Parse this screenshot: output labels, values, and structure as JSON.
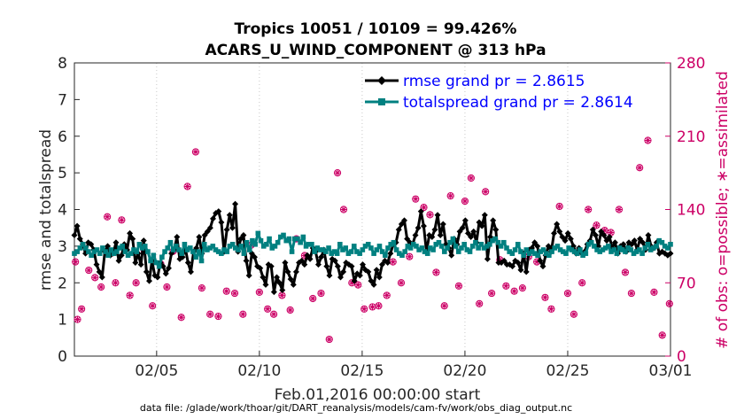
{
  "title_line1": "Tropics 10051 / 10109 = 99.426%",
  "title_line2": "ACARS_U_WIND_COMPONENT @ 313 hPa",
  "footer": "data file: /glade/work/thoar/git/DART_reanalysis/models/cam-fv/work/obs_diag_output.nc",
  "chart_data": {
    "type": "line",
    "title": "Tropics 10051 / 10109 = 99.426% — ACARS_U_WIND_COMPONENT @ 313 hPa",
    "xlabel": "Feb.01,2016 00:00:00 start",
    "ylabel": "rmse and totalspread",
    "y2label": "# of obs: o=possible; ∗=assimilated",
    "xlim": [
      0,
      29
    ],
    "ylim": [
      0,
      8
    ],
    "y2lim": [
      0,
      280
    ],
    "x_ticks": [
      {
        "x": 4,
        "label": "02/05"
      },
      {
        "x": 9,
        "label": "02/10"
      },
      {
        "x": 14,
        "label": "02/15"
      },
      {
        "x": 19,
        "label": "02/20"
      },
      {
        "x": 24,
        "label": "02/25"
      },
      {
        "x": 29,
        "label": "03/01"
      }
    ],
    "y_ticks": [
      0,
      1,
      2,
      3,
      4,
      5,
      6,
      7,
      8
    ],
    "y2_ticks": [
      0,
      70,
      140,
      210,
      280
    ],
    "legend_position": "top-right",
    "series": [
      {
        "name": "rmse grand pr = 2.8615",
        "color": "#000000",
        "marker": "diamond",
        "values": [
          3.3,
          3.55,
          3.2,
          3.05,
          2.8,
          3.1,
          3.05,
          2.9,
          2.5,
          2.3,
          2.15,
          2.85,
          3.0,
          2.75,
          2.8,
          3.1,
          2.6,
          2.75,
          3.05,
          2.9,
          3.35,
          3.2,
          2.55,
          2.8,
          2.5,
          3.15,
          2.3,
          2.05,
          2.6,
          2.2,
          2.15,
          2.55,
          2.45,
          2.25,
          2.4,
          2.8,
          2.9,
          3.25,
          2.65,
          2.7,
          2.95,
          2.55,
          2.3,
          2.85,
          2.95,
          3.25,
          2.8,
          3.3,
          3.4,
          3.5,
          3.75,
          3.9,
          3.95,
          3.65,
          2.85,
          3.45,
          3.85,
          3.5,
          4.15,
          2.85,
          3.2,
          3.3,
          2.6,
          2.2,
          2.8,
          2.7,
          2.45,
          2.4,
          2.15,
          1.95,
          2.5,
          2.45,
          1.75,
          2.15,
          2.0,
          1.8,
          2.55,
          2.3,
          2.1,
          1.95,
          2.3,
          2.55,
          2.6,
          2.5,
          2.75,
          2.65,
          2.95,
          2.85,
          2.5,
          2.7,
          2.9,
          2.45,
          2.2,
          2.65,
          2.6,
          2.45,
          2.15,
          2.3,
          2.55,
          2.5,
          2.45,
          2.05,
          2.25,
          2.2,
          2.5,
          2.35,
          2.3,
          2.05,
          1.95,
          2.35,
          2.15,
          2.5,
          2.6,
          2.55,
          2.8,
          3.05,
          3.1,
          3.45,
          3.6,
          3.7,
          3.2,
          3.1,
          3.05,
          3.3,
          3.5,
          3.95,
          3.55,
          2.85,
          3.3,
          3.25,
          3.45,
          3.85,
          3.3,
          3.6,
          3.05,
          2.95,
          2.75,
          3.2,
          3.05,
          3.4,
          3.5,
          3.7,
          3.35,
          3.25,
          3.4,
          3.1,
          3.65,
          3.55,
          3.85,
          2.65,
          3.25,
          3.7,
          3.45,
          2.55,
          2.55,
          2.6,
          2.5,
          2.5,
          2.45,
          2.6,
          2.55,
          2.35,
          2.8,
          2.3,
          2.9,
          2.95,
          3.1,
          3.0,
          2.6,
          2.45,
          2.75,
          3.0,
          2.85,
          3.35,
          3.6,
          3.4,
          3.25,
          3.15,
          3.35,
          3.2,
          3.0,
          2.8,
          2.95,
          2.8,
          2.85,
          3.05,
          3.15,
          3.45,
          3.3,
          3.0,
          3.4,
          3.3,
          3.15,
          3.25,
          2.95,
          3.1,
          2.8,
          3.0,
          3.05,
          2.85,
          3.1,
          3.05,
          3.15,
          2.9,
          3.2,
          3.1,
          2.9,
          3.3,
          3.0,
          2.95,
          3.1,
          2.8,
          2.85,
          2.8,
          2.75,
          2.8
        ]
      },
      {
        "name": "totalspread grand pr = 2.8614",
        "color": "#008080",
        "marker": "square",
        "values": [
          2.8,
          2.85,
          2.95,
          3.05,
          2.95,
          2.85,
          2.75,
          2.85,
          2.9,
          2.8,
          2.95,
          2.85,
          2.75,
          2.9,
          2.8,
          2.85,
          2.95,
          3.0,
          2.85,
          2.75,
          2.8,
          2.9,
          2.85,
          3.05,
          2.95,
          3.0,
          2.85,
          2.6,
          2.75,
          2.55,
          2.45,
          2.7,
          2.85,
          2.95,
          3.1,
          2.9,
          3.0,
          2.9,
          2.8,
          3.05,
          2.9,
          2.95,
          2.85,
          2.7,
          2.85,
          2.6,
          3.05,
          2.9,
          2.95,
          3.0,
          2.9,
          2.85,
          2.8,
          2.9,
          2.85,
          3.0,
          3.05,
          2.95,
          2.9,
          3.0,
          2.8,
          3.1,
          2.9,
          3.15,
          3.05,
          3.35,
          3.15,
          3.0,
          3.05,
          3.2,
          2.95,
          3.0,
          3.1,
          3.25,
          3.3,
          3.15,
          3.2,
          2.85,
          3.2,
          3.2,
          3.1,
          3.25,
          3.0,
          3.05,
          3.05,
          2.85,
          2.95,
          2.9,
          2.9,
          2.85,
          2.95,
          2.8,
          2.85,
          2.8,
          3.05,
          2.9,
          2.95,
          2.8,
          2.85,
          3.0,
          2.85,
          2.8,
          2.9,
          3.0,
          3.05,
          2.95,
          2.8,
          2.9,
          3.0,
          2.85,
          2.75,
          2.95,
          3.05,
          3.1,
          2.9,
          2.8,
          2.75,
          2.85,
          3.0,
          2.95,
          3.05,
          3.0,
          2.9,
          2.95,
          2.85,
          2.8,
          2.95,
          2.9,
          3.05,
          3.1,
          3.0,
          2.85,
          2.95,
          3.1,
          3.2,
          3.0,
          2.85,
          2.95,
          3.05,
          2.9,
          2.85,
          3.0,
          3.1,
          2.95,
          3.05,
          2.95,
          3.0,
          3.05,
          3.15,
          3.2,
          3.1,
          3.0,
          3.1,
          2.95,
          2.85,
          2.8,
          2.9,
          3.05,
          2.85,
          2.75,
          2.9,
          2.8,
          2.85,
          2.8,
          2.75,
          2.85,
          2.9,
          2.8,
          2.75,
          2.85,
          2.95,
          3.0,
          2.9,
          2.85,
          2.8,
          2.95,
          2.9,
          2.85,
          2.8,
          2.9,
          2.75,
          2.8,
          3.05,
          3.1,
          3.0,
          2.9,
          2.85,
          2.9,
          2.95,
          3.0,
          2.85,
          2.9,
          2.8,
          2.95,
          2.9,
          2.85,
          2.95,
          2.9,
          2.8,
          2.85,
          2.9,
          2.8,
          2.95,
          3.05,
          2.9,
          2.95,
          3.0,
          3.15,
          3.1,
          3.0,
          2.95,
          3.05
        ]
      }
    ],
    "obs_series": [
      {
        "name": "possible",
        "color": "#cc0066",
        "marker": "circle",
        "x": [
          0.05,
          0.15,
          0.35,
          0.7,
          1.0,
          1.3,
          1.6,
          2.0,
          2.3,
          2.7,
          3.0,
          3.4,
          3.8,
          4.2,
          4.5,
          4.8,
          5.2,
          5.5,
          5.9,
          6.2,
          6.6,
          7.0,
          7.4,
          7.8,
          8.2,
          8.6,
          9.0,
          9.4,
          9.7,
          10.1,
          10.5,
          10.8,
          11.2,
          11.6,
          12.0,
          12.4,
          12.8,
          13.1,
          13.5,
          13.8,
          14.1,
          14.5,
          14.8,
          15.2,
          15.5,
          15.9,
          16.3,
          16.6,
          17.0,
          17.3,
          17.6,
          18.0,
          18.3,
          18.7,
          19.0,
          19.3,
          19.7,
          20.0,
          20.3,
          20.7,
          21.0,
          21.4,
          21.8,
          22.1,
          22.5,
          22.9,
          23.2,
          23.6,
          24.0,
          24.3,
          24.7,
          25.0,
          25.4,
          25.8,
          26.1,
          26.5,
          26.8,
          27.1,
          27.5,
          27.9,
          28.2,
          28.6,
          28.95
        ],
        "values": [
          90,
          35,
          45,
          82,
          75,
          66,
          133,
          70,
          130,
          58,
          70,
          100,
          48,
          88,
          66,
          100,
          37,
          162,
          195,
          65,
          40,
          38,
          62,
          60,
          40,
          106,
          61,
          45,
          40,
          58,
          44,
          112,
          96,
          55,
          60,
          16,
          175,
          140,
          70,
          68,
          45,
          47,
          48,
          58,
          90,
          70,
          95,
          150,
          142,
          135,
          80,
          48,
          153,
          67,
          148,
          170,
          50,
          157,
          60,
          92,
          67,
          62,
          65,
          95,
          90,
          56,
          45,
          143,
          60,
          40,
          70,
          140,
          125,
          120,
          118,
          140,
          80,
          60,
          180,
          206,
          61,
          20,
          50
        ]
      },
      {
        "name": "assimilated",
        "color": "#cc0066",
        "marker": "asterisk",
        "x": [
          0.05,
          0.15,
          0.35,
          0.7,
          1.0,
          1.3,
          1.6,
          2.0,
          2.3,
          2.7,
          3.0,
          3.4,
          3.8,
          4.2,
          4.5,
          4.8,
          5.2,
          5.5,
          5.9,
          6.2,
          6.6,
          7.0,
          7.4,
          7.8,
          8.2,
          8.6,
          9.0,
          9.4,
          9.7,
          10.1,
          10.5,
          10.8,
          11.2,
          11.6,
          12.0,
          12.4,
          12.8,
          13.1,
          13.5,
          13.8,
          14.1,
          14.5,
          14.8,
          15.2,
          15.5,
          15.9,
          16.3,
          16.6,
          17.0,
          17.3,
          17.6,
          18.0,
          18.3,
          18.7,
          19.0,
          19.3,
          19.7,
          20.0,
          20.3,
          20.7,
          21.0,
          21.4,
          21.8,
          22.1,
          22.5,
          22.9,
          23.2,
          23.6,
          24.0,
          24.3,
          24.7,
          25.0,
          25.4,
          25.8,
          26.1,
          26.5,
          26.8,
          27.1,
          27.5,
          27.9,
          28.2,
          28.6,
          28.95
        ],
        "values": [
          90,
          35,
          45,
          82,
          75,
          66,
          133,
          70,
          130,
          58,
          70,
          100,
          48,
          88,
          66,
          100,
          37,
          162,
          195,
          65,
          40,
          38,
          62,
          60,
          40,
          106,
          61,
          45,
          40,
          58,
          44,
          112,
          96,
          55,
          60,
          16,
          175,
          140,
          70,
          68,
          45,
          47,
          48,
          58,
          90,
          70,
          95,
          150,
          142,
          135,
          80,
          48,
          153,
          67,
          148,
          170,
          50,
          157,
          60,
          92,
          67,
          62,
          65,
          95,
          90,
          56,
          45,
          143,
          60,
          40,
          70,
          140,
          125,
          120,
          118,
          140,
          80,
          60,
          180,
          206,
          61,
          20,
          50
        ]
      }
    ]
  }
}
